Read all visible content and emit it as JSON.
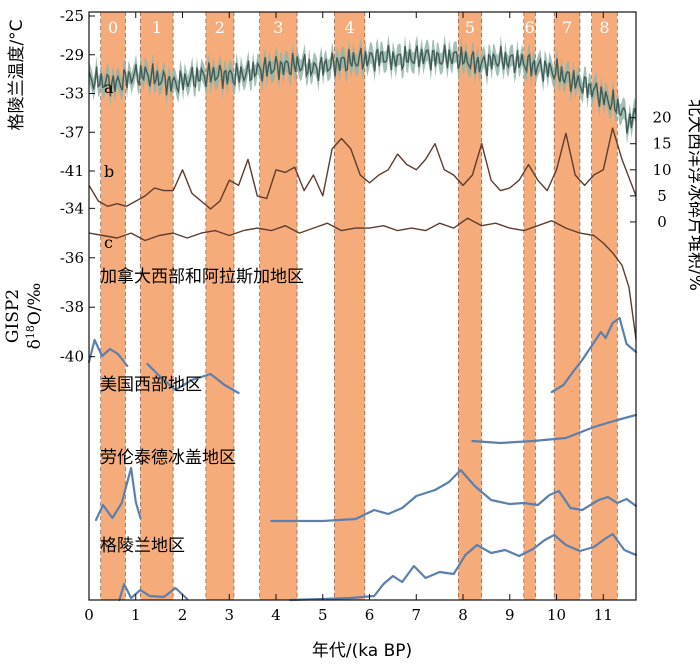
{
  "chart_data": {
    "type": "line",
    "title": "",
    "xlabel": "年代/(ka BP)",
    "xlim": [
      0,
      11.7
    ],
    "x_ticks": [
      0,
      1,
      2,
      3,
      4,
      5,
      6,
      7,
      8,
      9,
      10,
      11
    ],
    "colors": {
      "band": "#f6ab7b",
      "temp_line": "#405a55",
      "temp_shade": "#92b5a9",
      "brown": "#5e3d2e",
      "region": "#5b80ad"
    },
    "cold_events": [
      {
        "label": "0",
        "start": 0.25,
        "end": 0.78
      },
      {
        "label": "1",
        "start": 1.1,
        "end": 1.8
      },
      {
        "label": "2",
        "start": 2.5,
        "end": 3.1
      },
      {
        "label": "3",
        "start": 3.65,
        "end": 4.45
      },
      {
        "label": "4",
        "start": 5.25,
        "end": 5.9
      },
      {
        "label": "5",
        "start": 7.9,
        "end": 8.4
      },
      {
        "label": "6",
        "start": 9.3,
        "end": 9.55
      },
      {
        "label": "7",
        "start": 9.95,
        "end": 10.5
      },
      {
        "label": "8",
        "start": 10.75,
        "end": 11.3
      }
    ],
    "greenland_temp": {
      "label": "a",
      "ylabel": "格陵兰温度/°C",
      "y_ticks": [
        -25,
        -29,
        -33,
        -37,
        -41
      ],
      "ylim": [
        -41,
        -25
      ],
      "x": [
        0,
        0.3,
        0.6,
        0.9,
        1.2,
        1.5,
        1.8,
        2.1,
        2.4,
        2.7,
        3.0,
        3.3,
        3.6,
        3.9,
        4.2,
        4.5,
        4.8,
        5.1,
        5.4,
        5.7,
        6.0,
        6.3,
        6.6,
        6.9,
        7.2,
        7.5,
        7.8,
        8.1,
        8.4,
        8.7,
        9.0,
        9.3,
        9.6,
        9.9,
        10.2,
        10.5,
        10.8,
        11.0,
        11.2,
        11.4,
        11.55,
        11.7
      ],
      "y": [
        -31.5,
        -31.8,
        -32,
        -31.2,
        -31,
        -31.5,
        -32,
        -31.6,
        -31.2,
        -31,
        -31.2,
        -31,
        -30.6,
        -30.3,
        -30.2,
        -30,
        -30.5,
        -30.1,
        -29.8,
        -29.6,
        -29.4,
        -29.2,
        -29.5,
        -29.3,
        -29.1,
        -29.4,
        -29.2,
        -29.6,
        -30,
        -29.5,
        -29.6,
        -29.8,
        -30.3,
        -30.6,
        -31.3,
        -32,
        -32.6,
        -33.4,
        -34,
        -34.8,
        -36.2,
        -35
      ]
    },
    "ice_rafted_debris": {
      "label": "b",
      "ylabel": "北大西洋浮冰碎片堆积/%",
      "y_ticks": [
        0,
        5,
        10,
        15,
        20
      ],
      "ylim": [
        -5,
        23
      ],
      "x": [
        0,
        0.2,
        0.4,
        0.6,
        0.8,
        1.0,
        1.2,
        1.4,
        1.6,
        1.8,
        2.0,
        2.2,
        2.4,
        2.6,
        2.8,
        3.0,
        3.2,
        3.4,
        3.6,
        3.8,
        4.0,
        4.2,
        4.4,
        4.6,
        4.8,
        5.0,
        5.2,
        5.4,
        5.6,
        5.8,
        6.0,
        6.2,
        6.4,
        6.6,
        6.8,
        7.0,
        7.2,
        7.4,
        7.6,
        7.8,
        8.0,
        8.2,
        8.4,
        8.6,
        8.8,
        9.0,
        9.2,
        9.4,
        9.6,
        9.8,
        10.0,
        10.2,
        10.4,
        10.6,
        10.8,
        11.0,
        11.2,
        11.4,
        11.7
      ],
      "y": [
        7,
        4,
        3,
        3.5,
        3,
        4,
        5,
        6.5,
        6,
        6,
        10,
        5.5,
        4,
        2.5,
        4,
        8,
        7,
        12,
        5,
        4.5,
        10,
        9.5,
        10.5,
        6,
        9,
        5,
        14,
        16,
        14,
        9,
        7.5,
        9,
        10,
        13,
        11,
        10,
        12,
        15,
        10,
        9,
        7,
        9,
        15,
        8,
        6,
        6.5,
        8,
        11,
        8,
        6,
        10,
        17,
        9,
        7,
        9,
        10,
        18,
        12,
        5
      ]
    },
    "gisp2": {
      "label": "c",
      "ylabel": "GISP2 δ18O/‰",
      "y_ticks": [
        -34,
        -36,
        -38,
        -40
      ],
      "ylim": [
        -40.5,
        -33.5
      ],
      "x": [
        0,
        0.3,
        0.6,
        0.9,
        1.2,
        1.5,
        1.8,
        2.1,
        2.4,
        2.7,
        3.0,
        3.3,
        3.6,
        3.9,
        4.2,
        4.5,
        4.8,
        5.1,
        5.4,
        5.7,
        6.0,
        6.3,
        6.6,
        6.9,
        7.2,
        7.5,
        7.8,
        8.1,
        8.4,
        8.7,
        9.0,
        9.3,
        9.6,
        9.9,
        10.2,
        10.5,
        10.8,
        11.0,
        11.2,
        11.4,
        11.55,
        11.7
      ],
      "y": [
        -35,
        -35.1,
        -35.2,
        -35,
        -35.3,
        -35.1,
        -35,
        -35.2,
        -35,
        -34.9,
        -35.1,
        -34.9,
        -34.8,
        -34.9,
        -34.7,
        -35,
        -34.8,
        -34.6,
        -34.9,
        -34.8,
        -34.8,
        -34.7,
        -34.9,
        -34.8,
        -34.9,
        -34.6,
        -34.8,
        -34.4,
        -34.7,
        -34.6,
        -34.8,
        -34.9,
        -34.7,
        -34.5,
        -34.8,
        -35,
        -35.1,
        -35.4,
        -35.8,
        -36.3,
        -37.2,
        -39.3
      ]
    },
    "regions": [
      {
        "name": "加拿大西部和阿拉斯加地区"
      },
      {
        "name": "美国西部地区"
      },
      {
        "name": "劳伦泰德冰盖地区"
      },
      {
        "name": "格陵兰地区"
      }
    ]
  }
}
